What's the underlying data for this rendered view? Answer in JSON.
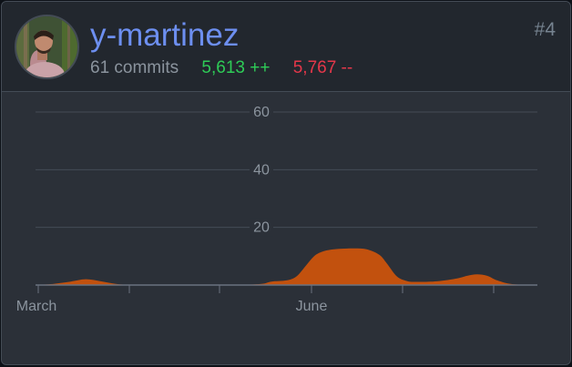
{
  "user": {
    "username": "y-martinez",
    "commits": "61 commits",
    "additions": "5,613 ++",
    "deletions": "5,767 --",
    "rank": "#4",
    "avatar": "profile-photo"
  },
  "colors": {
    "card_bg": "#2b3038",
    "header_bg": "#22272e",
    "username": "#6d8ff0",
    "additions": "#2ecc57",
    "deletions": "#e5374a",
    "area_fill": "#c2510e"
  },
  "chart_data": {
    "type": "area",
    "yticks": [
      "20",
      "40",
      "60"
    ],
    "ylim": [
      0,
      60
    ],
    "xticks": [
      "March",
      "June"
    ],
    "grid": true,
    "x": [
      0,
      0.03,
      0.07,
      0.1,
      0.13,
      0.16,
      0.19,
      0.22,
      0.26,
      0.3,
      0.35,
      0.4,
      0.45,
      0.47,
      0.5,
      0.52,
      0.54,
      0.555,
      0.57,
      0.59,
      0.61,
      0.635,
      0.66,
      0.685,
      0.7,
      0.72,
      0.74,
      0.76,
      0.8,
      0.84,
      0.86,
      0.88,
      0.9,
      0.92,
      0.95,
      1
    ],
    "values": [
      0,
      0.3,
      1.2,
      2,
      1.3,
      0.4,
      0,
      0,
      0,
      0,
      0,
      0,
      0.4,
      1.2,
      1.6,
      3,
      7,
      10,
      11.5,
      12.3,
      12.6,
      12.7,
      12.4,
      10.5,
      7.5,
      3,
      1.4,
      1.1,
      1.3,
      2.3,
      3.2,
      3.7,
      3.2,
      1.6,
      0.3,
      0
    ]
  }
}
